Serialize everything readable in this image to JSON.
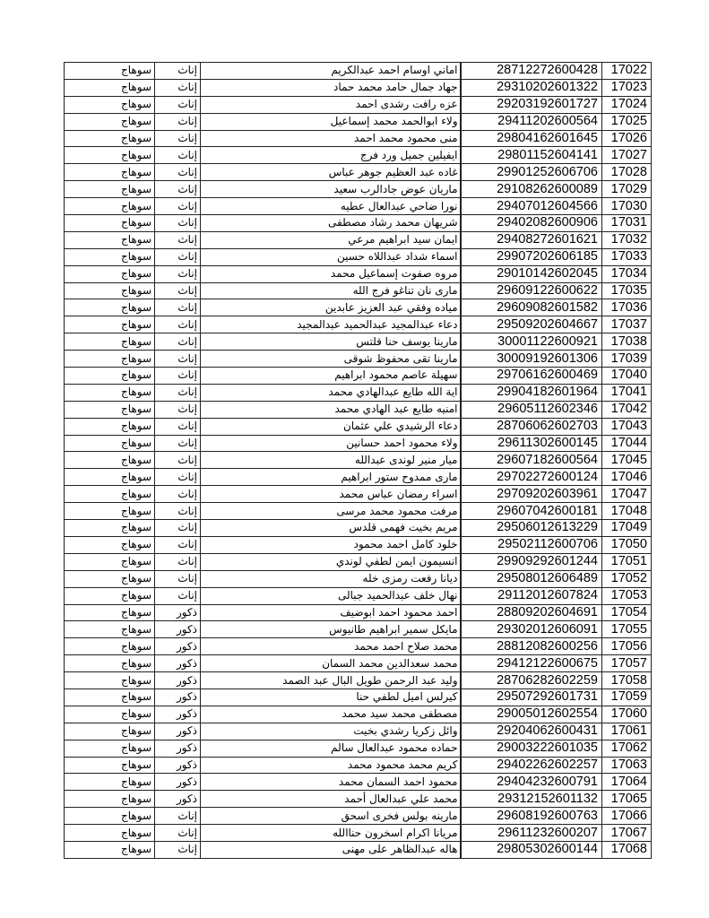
{
  "rows": [
    [
      "17022",
      "28712272600428",
      "اماني اوسام احمد عبدالكريم",
      "إناث",
      "سوهاج"
    ],
    [
      "17023",
      "29310202601322",
      "جهاد جمال حامد محمد حماد",
      "إناث",
      "سوهاج"
    ],
    [
      "17024",
      "29203192601727",
      "عزه رافت رشدى احمد",
      "إناث",
      "سوهاج"
    ],
    [
      "17025",
      "29411202600564",
      "ولاء ابوالحمد محمد إسماعيل",
      "إناث",
      "سوهاج"
    ],
    [
      "17026",
      "29804162601645",
      "منى محمود محمد احمد",
      "إناث",
      "سوهاج"
    ],
    [
      "17027",
      "29801152604141",
      "ايفيلين جميل ورد فرج",
      "إناث",
      "سوهاج"
    ],
    [
      "17028",
      "29901252606706",
      "غاده عبد العظيم جوهر عباس",
      "إناث",
      "سوهاج"
    ],
    [
      "17029",
      "29108262600089",
      "ماريان عوض جادالرب سعيد",
      "إناث",
      "سوهاج"
    ],
    [
      "17030",
      "29407012604566",
      "نورا ضاحي عبدالعال عطيه",
      "إناث",
      "سوهاج"
    ],
    [
      "17031",
      "29402082600906",
      "شريهان محمد رشاد مصطفى",
      "إناث",
      "سوهاج"
    ],
    [
      "17032",
      "29408272601621",
      "ايمان سيد ابراهيم مرعي",
      "إناث",
      "سوهاج"
    ],
    [
      "17033",
      "29907202606185",
      "اسماء شداد عبداللاه حسين",
      "إناث",
      "سوهاج"
    ],
    [
      "17034",
      "29010142602045",
      "مروه صفوت إسماعيل محمد",
      "إناث",
      "سوهاج"
    ],
    [
      "17035",
      "29609122600622",
      "مارى نان تناغو فرج الله",
      "إناث",
      "سوهاج"
    ],
    [
      "17036",
      "29609082601582",
      "مياده وفقي عبد العزيز عابدين",
      "إناث",
      "سوهاج"
    ],
    [
      "17037",
      "29509202604667",
      "دعاء عبدالمجيد عبدالحميد عبدالمجيد",
      "إناث",
      "سوهاج"
    ],
    [
      "17038",
      "30001122600921",
      "مارينا يوسف حنا قلتس",
      "إناث",
      "سوهاج"
    ],
    [
      "17039",
      "30009192601306",
      "مارينا تقى محفوظ شوقى",
      "إناث",
      "سوهاج"
    ],
    [
      "17040",
      "29706162600469",
      "سهيلة عاصم محمود ابراهيم",
      "إناث",
      "سوهاج"
    ],
    [
      "17041",
      "29904182601964",
      "اية الله طايع عبدالهادي محمد",
      "إناث",
      "سوهاج"
    ],
    [
      "17042",
      "29605112602346",
      "امنيه طايع عبد الهادي محمد",
      "إناث",
      "سوهاج"
    ],
    [
      "17043",
      "28706062602703",
      "دعاء  الرشيدي  علي عثمان",
      "إناث",
      "سوهاج"
    ],
    [
      "17044",
      "29611302600145",
      "ولاء محمود احمد حسانين",
      "إناث",
      "سوهاج"
    ],
    [
      "17045",
      "29607182600564",
      "ميار منير لوندى عبدالله",
      "إناث",
      "سوهاج"
    ],
    [
      "17046",
      "29702272600124",
      "مارى ممدوح ستور ابراهيم",
      "إناث",
      "سوهاج"
    ],
    [
      "17047",
      "29709202603961",
      "اسراء رمضان عباس محمد",
      "إناث",
      "سوهاج"
    ],
    [
      "17048",
      "29607042600181",
      "مرفت محمود محمد مرسى",
      "إناث",
      "سوهاج"
    ],
    [
      "17049",
      "29506012613229",
      "مريم بخيت فهمى قلدس",
      "إناث",
      "سوهاج"
    ],
    [
      "17050",
      "29502112600706",
      "خلود كامل احمد محمود",
      "إناث",
      "سوهاج"
    ],
    [
      "17051",
      "29909292601244",
      "انسيمون ايمن لطفي لوندي",
      "إناث",
      "سوهاج"
    ],
    [
      "17052",
      "29508012606489",
      "ديانا رفعت رمزى خله",
      "إناث",
      "سوهاج"
    ],
    [
      "17053",
      "29112012607824",
      "نهال خلف عبدالحميد جبالى",
      "إناث",
      "سوهاج"
    ],
    [
      "17054",
      "28809202604691",
      "احمد محمود احمد ابوضيف",
      "ذكور",
      "سوهاج"
    ],
    [
      "17055",
      "29302012606091",
      "مايكل سمير ابراهيم طانيوس",
      "ذكور",
      "سوهاج"
    ],
    [
      "17056",
      "28812082600256",
      "محمد صلاح احمد محمد",
      "ذكور",
      "سوهاج"
    ],
    [
      "17057",
      "29412122600675",
      "محمد سعدالدين محمد السمان",
      "ذكور",
      "سوهاج"
    ],
    [
      "17058",
      "28706282602259",
      "وليد عبد الرحمن طويل البال عبد الصمد",
      "ذكور",
      "سوهاج"
    ],
    [
      "17059",
      "29507292601731",
      "كيرلس اميل لطفي حنا",
      "ذكور",
      "سوهاج"
    ],
    [
      "17060",
      "29005012602554",
      "مصطفى محمد سيد محمد",
      "ذكور",
      "سوهاج"
    ],
    [
      "17061",
      "29204062600431",
      "وائل زكريا رشدي بخيت",
      "ذكور",
      "سوهاج"
    ],
    [
      "17062",
      "29003222601035",
      "حماده محمود عبدالعال سالم",
      "ذكور",
      "سوهاج"
    ],
    [
      "17063",
      "29402262602257",
      "كريم محمد محمود محمد",
      "ذكور",
      "سوهاج"
    ],
    [
      "17064",
      "29404232600791",
      "محمود احمد السمان محمد",
      "ذكور",
      "سوهاج"
    ],
    [
      "17065",
      "29312152601132",
      "محمد علي عبدالعال أحمد",
      "ذكور",
      "سوهاج"
    ],
    [
      "17066",
      "29608192600763",
      "مارينه بولس فخرى اسحق",
      "إناث",
      "سوهاج"
    ],
    [
      "17067",
      "29611232600207",
      "مريانا اكرام اسخرون حناالله",
      "إناث",
      "سوهاج"
    ],
    [
      "17068",
      "29805302600144",
      "هاله عبدالظاهر على مهنى",
      "إناث",
      "سوهاج"
    ]
  ]
}
